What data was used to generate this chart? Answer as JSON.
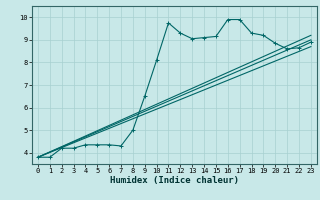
{
  "xlabel": "Humidex (Indice chaleur)",
  "bg_color": "#c8e8e8",
  "grid_color": "#a8d0d0",
  "line_color": "#006666",
  "xlim": [
    -0.5,
    23.5
  ],
  "ylim": [
    3.5,
    10.5
  ],
  "xticks": [
    0,
    1,
    2,
    3,
    4,
    5,
    6,
    7,
    8,
    9,
    10,
    11,
    12,
    13,
    14,
    15,
    16,
    17,
    18,
    19,
    20,
    21,
    22,
    23
  ],
  "yticks": [
    4,
    5,
    6,
    7,
    8,
    9,
    10
  ],
  "line1_x": [
    0,
    1,
    2,
    3,
    4,
    5,
    6,
    7,
    8,
    9,
    10,
    11,
    12,
    13,
    14,
    15,
    16,
    17,
    18,
    19,
    20,
    21,
    22,
    23
  ],
  "line1_y": [
    3.8,
    3.8,
    4.2,
    4.2,
    4.35,
    4.35,
    4.35,
    4.3,
    5.0,
    6.5,
    8.1,
    9.75,
    9.3,
    9.05,
    9.1,
    9.15,
    9.9,
    9.9,
    9.3,
    9.2,
    8.85,
    8.6,
    8.65,
    8.9
  ],
  "line2_x": [
    0,
    23
  ],
  "line2_y": [
    3.8,
    8.7
  ],
  "line3_x": [
    0,
    23
  ],
  "line3_y": [
    3.8,
    9.0
  ],
  "line4_x": [
    0,
    23
  ],
  "line4_y": [
    3.8,
    9.2
  ]
}
